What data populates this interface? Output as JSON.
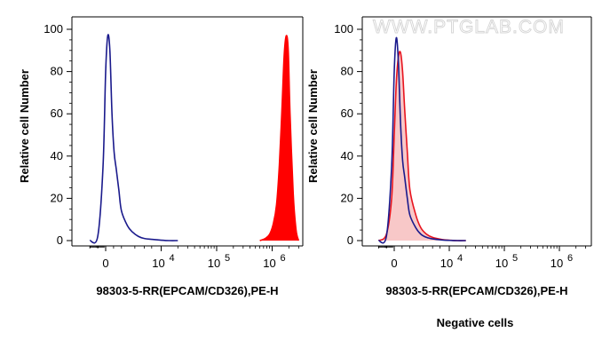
{
  "watermark": "WWW.PTGLAB.COM",
  "colors": {
    "outline": "#1a1a8c",
    "filled_positive": "#ff0000",
    "filled_negative_line": "#e8141e",
    "filled_negative_area": "#f8c8c8"
  },
  "chart_data": [
    {
      "type": "area",
      "title": "",
      "xlabel": "98303-5-RR(EPCAM/CD326),PE-H",
      "ylabel": "Relative cell Number",
      "subtitle": "",
      "x_scale": "biexponential",
      "ylim": [
        0,
        100
      ],
      "y_ticks": [
        "0",
        "20",
        "40",
        "60",
        "80",
        "100"
      ],
      "x_ticks": [
        {
          "base": "0",
          "exp": ""
        },
        {
          "base": "10",
          "exp": "4"
        },
        {
          "base": "10",
          "exp": "5"
        },
        {
          "base": "10",
          "exp": "6"
        }
      ],
      "series": [
        {
          "style": "outline",
          "color": "#1a1a8c",
          "x": [
            -3000,
            -1500,
            -500,
            0,
            400,
            800,
            1200,
            1600,
            2000,
            2500,
            3000,
            3600,
            4200,
            5000,
            6000,
            8000,
            10000,
            14000,
            20000
          ],
          "y": [
            0,
            2,
            35,
            80,
            97,
            90,
            60,
            42,
            34,
            24,
            14,
            7,
            4,
            2,
            1,
            0.5,
            0.2,
            0,
            0
          ]
        },
        {
          "style": "filled",
          "color": "#ff0000",
          "x": [
            600000,
            750000,
            900000,
            1050000,
            1200000,
            1350000,
            1500000,
            1650000,
            1800000,
            1950000,
            2100000,
            2400000,
            2700000,
            3000000
          ],
          "y": [
            0,
            1,
            3,
            8,
            17,
            36,
            62,
            88,
            97,
            90,
            60,
            22,
            5,
            0
          ]
        }
      ]
    },
    {
      "type": "area",
      "title": "",
      "xlabel": "98303-5-RR(EPCAM/CD326),PE-H",
      "ylabel": "Relative cell Number",
      "subtitle": "Negative cells",
      "x_scale": "biexponential",
      "ylim": [
        0,
        100
      ],
      "y_ticks": [
        "0",
        "20",
        "40",
        "60",
        "80",
        "100"
      ],
      "x_ticks": [
        {
          "base": "0",
          "exp": ""
        },
        {
          "base": "10",
          "exp": "4"
        },
        {
          "base": "10",
          "exp": "5"
        },
        {
          "base": "10",
          "exp": "6"
        }
      ],
      "series": [
        {
          "style": "filled",
          "color": "#e8141e",
          "x": [
            -3000,
            -1500,
            -500,
            0,
            400,
            800,
            1200,
            1600,
            2000,
            2500,
            3000,
            3600,
            4200,
            5000,
            6000,
            8000,
            10000,
            14000,
            20000
          ],
          "y": [
            0,
            3,
            20,
            50,
            75,
            87,
            89,
            80,
            62,
            42,
            24,
            12,
            6,
            3,
            1.5,
            0.5,
            0.2,
            0,
            0
          ]
        },
        {
          "style": "outline",
          "color": "#1a1a8c",
          "x": [
            -3000,
            -1500,
            -500,
            0,
            400,
            800,
            1200,
            1600,
            2000,
            2500,
            3000,
            3600,
            4200,
            5000,
            6000,
            8000,
            10000,
            14000,
            20000
          ],
          "y": [
            0,
            2,
            35,
            80,
            96,
            84,
            56,
            38,
            30,
            20,
            12,
            6,
            3,
            1.5,
            0.8,
            0.3,
            0.1,
            0,
            0
          ]
        }
      ]
    }
  ]
}
